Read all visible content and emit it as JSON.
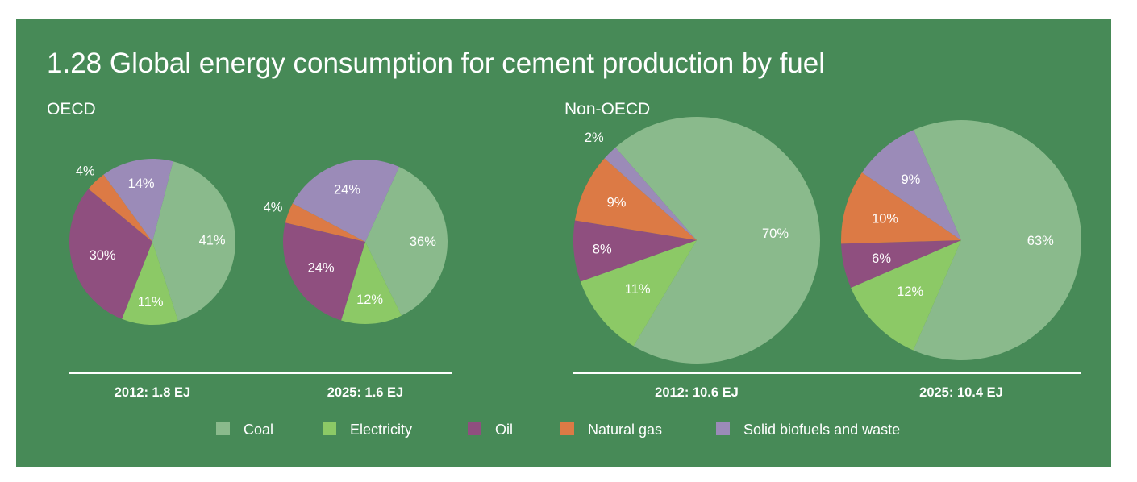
{
  "title": "1.28 Global energy consumption for cement production by fuel",
  "groups": [
    "OECD",
    "Non-OECD"
  ],
  "legend": [
    {
      "name": "Coal",
      "color": "#8aba8c"
    },
    {
      "name": "Electricity",
      "color": "#8cc966"
    },
    {
      "name": "Oil",
      "color": "#8f4f7f"
    },
    {
      "name": "Natural gas",
      "color": "#dc7a45"
    },
    {
      "name": "Solid biofuels and waste",
      "color": "#9b8bb8"
    }
  ],
  "chart_data": [
    {
      "type": "pie",
      "group": "OECD",
      "caption": "2012: 1.8 EJ",
      "categories": [
        "Coal",
        "Electricity",
        "Oil",
        "Natural gas",
        "Solid biofuels and waste"
      ],
      "values": [
        41,
        11,
        30,
        4,
        14
      ],
      "labels": [
        "41%",
        "11%",
        "30%",
        "4%",
        "14%"
      ]
    },
    {
      "type": "pie",
      "group": "OECD",
      "caption": "2025: 1.6 EJ",
      "categories": [
        "Coal",
        "Electricity",
        "Oil",
        "Natural gas",
        "Solid biofuels and waste"
      ],
      "values": [
        36,
        12,
        24,
        4,
        24
      ],
      "labels": [
        "36%",
        "12%",
        "24%",
        "4%",
        "24%"
      ]
    },
    {
      "type": "pie",
      "group": "Non-OECD",
      "caption": "2012: 10.6 EJ",
      "categories": [
        "Coal",
        "Electricity",
        "Oil",
        "Natural gas",
        "Solid biofuels and waste"
      ],
      "values": [
        70,
        11,
        8,
        9,
        2
      ],
      "labels": [
        "70%",
        "11%",
        "8%",
        "9%",
        "2%"
      ]
    },
    {
      "type": "pie",
      "group": "Non-OECD",
      "caption": "2025: 10.4 EJ",
      "categories": [
        "Coal",
        "Electricity",
        "Oil",
        "Natural gas",
        "Solid biofuels and waste"
      ],
      "values": [
        63,
        12,
        6,
        10,
        9
      ],
      "labels": [
        "63%",
        "12%",
        "6%",
        "10%",
        "9%"
      ]
    }
  ]
}
